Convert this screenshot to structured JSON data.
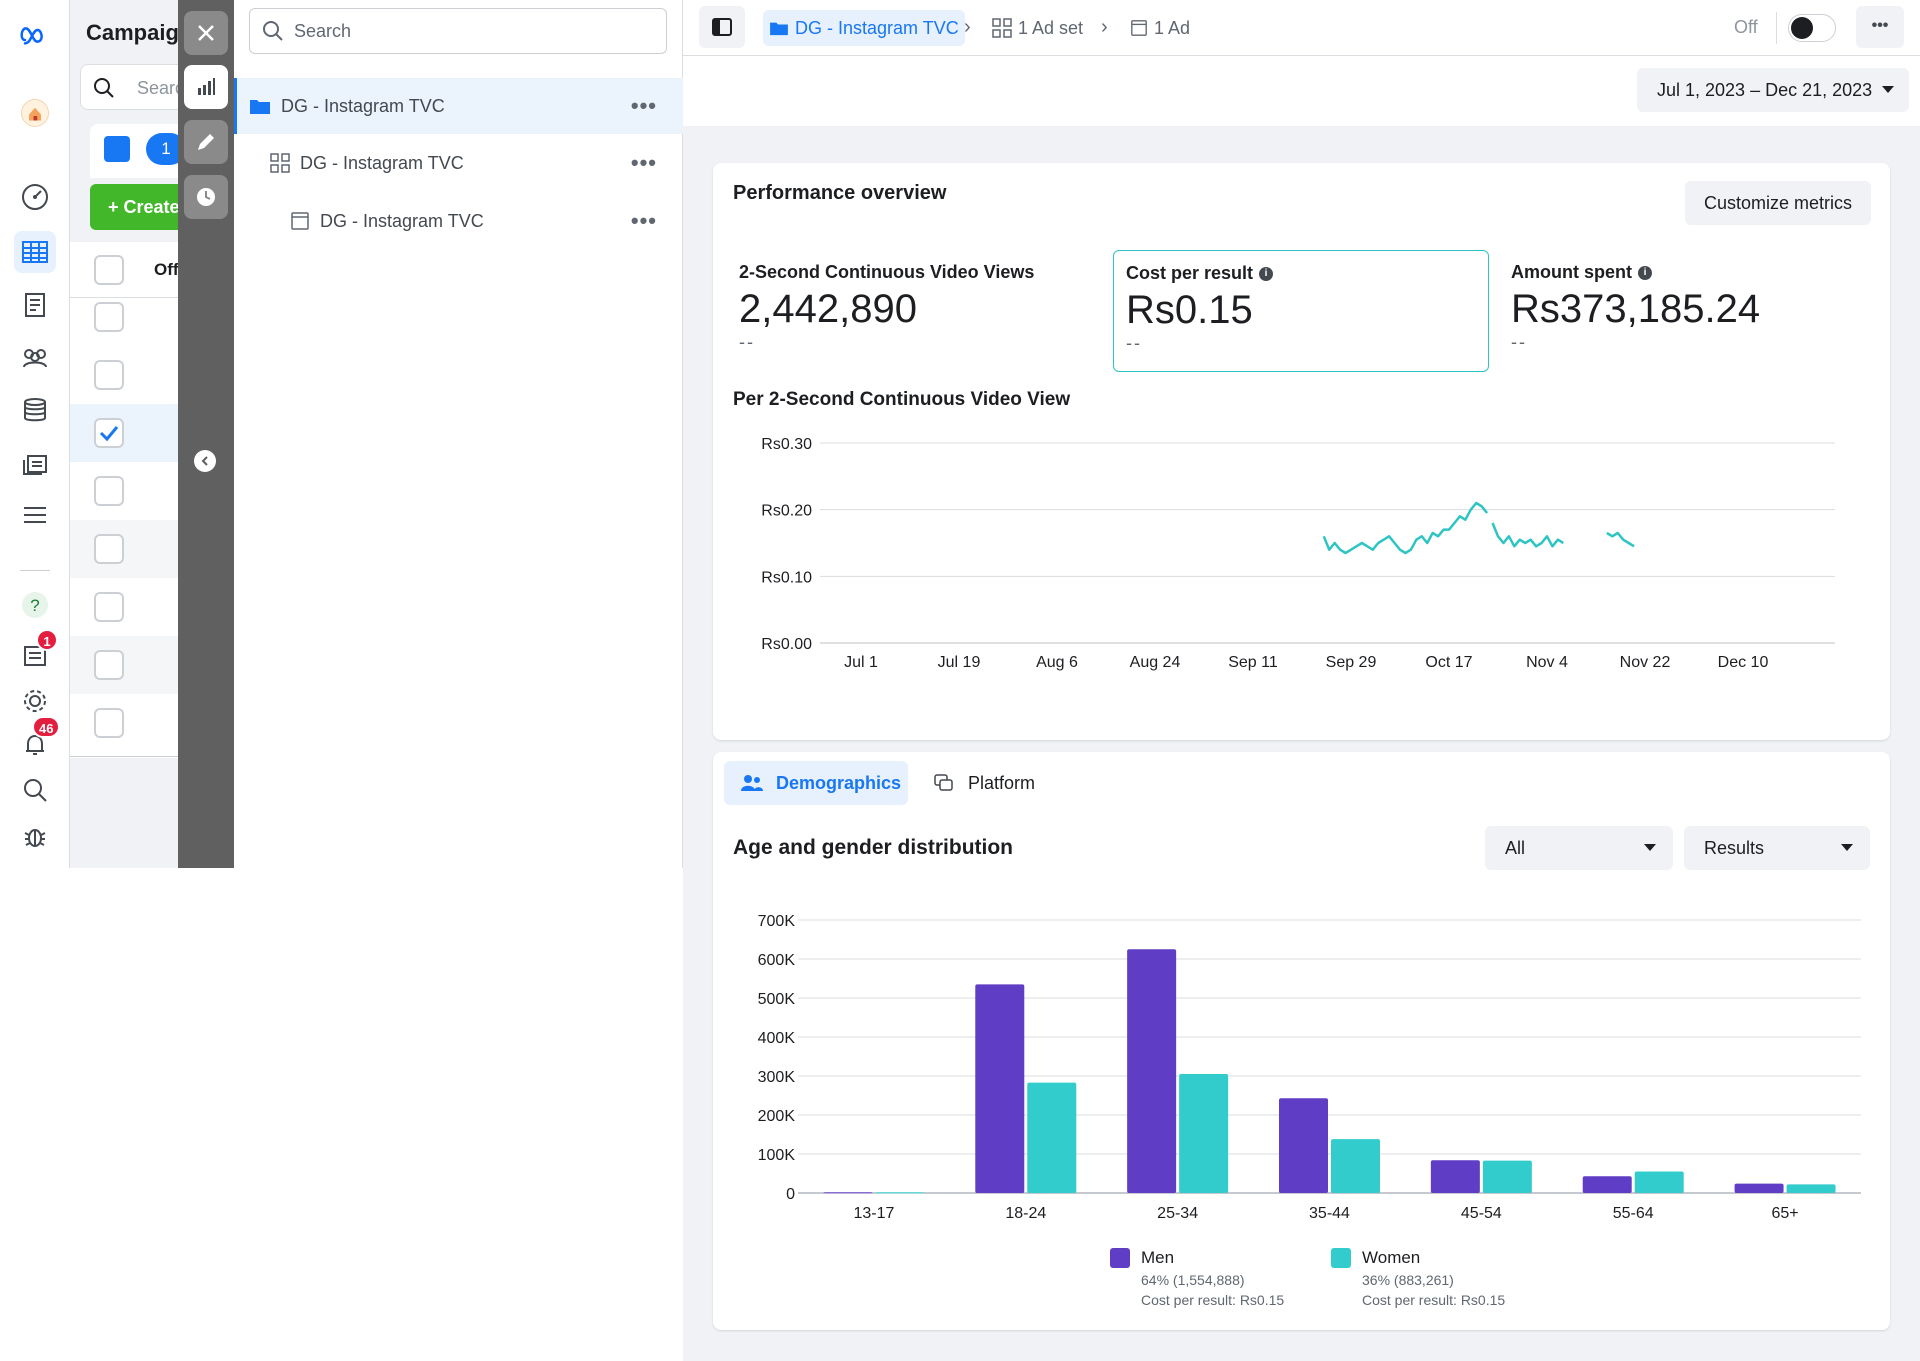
{
  "rail": {
    "badges": {
      "news": "1",
      "notifications": "46"
    }
  },
  "campaign_panel": {
    "title": "Campaign",
    "search_placeholder": "Search",
    "selected_count": "1",
    "create_label": "Create",
    "column_header": "Off"
  },
  "tree": {
    "search_placeholder": "Search",
    "items": [
      {
        "label": "DG - Instagram TVC",
        "level": "campaign"
      },
      {
        "label": "DG - Instagram TVC",
        "level": "adset"
      },
      {
        "label": "DG - Instagram TVC",
        "level": "ad"
      }
    ],
    "more": "•••"
  },
  "topbar": {
    "breadcrumb": {
      "campaign": "DG - Instagram TVC",
      "adset": "1 Ad set",
      "ad": "1 Ad"
    },
    "toggle_label": "Off",
    "more": "•••"
  },
  "date_range": "Jul 1, 2023 – Dec 21, 2023",
  "overview": {
    "title": "Performance overview",
    "customize_label": "Customize metrics",
    "metrics": [
      {
        "label": "2-Second Continuous Video Views",
        "value": "2,442,890",
        "compare": "--",
        "selected": false,
        "info": false
      },
      {
        "label": "Cost per result",
        "value": "Rs0.15",
        "compare": "--",
        "selected": true,
        "info": true
      },
      {
        "label": "Amount spent",
        "value": "Rs373,185.24",
        "compare": "--",
        "selected": false,
        "info": true
      }
    ],
    "line_chart_title": "Per 2-Second Continuous Video View"
  },
  "tabs": {
    "demographics": "Demographics",
    "platform": "Platform"
  },
  "age_gender": {
    "title": "Age and gender distribution",
    "filter_all": "All",
    "filter_results": "Results"
  },
  "legend": {
    "men": {
      "name": "Men",
      "share": "64% (1,554,888)",
      "cpr": "Cost per result: Rs0.15"
    },
    "women": {
      "name": "Women",
      "share": "36% (883,261)",
      "cpr": "Cost per result: Rs0.15"
    }
  },
  "colors": {
    "accent": "#1877f2",
    "men": "#5f3dc4",
    "women": "#33cccc",
    "line": "#2ec4c4"
  },
  "chart_data": [
    {
      "type": "line",
      "ylabel": "",
      "yticks": [
        "Rs0.00",
        "Rs0.10",
        "Rs0.20",
        "Rs0.30"
      ],
      "ylim": [
        0,
        0.3
      ],
      "xticks": [
        "Jul 1",
        "Jul 19",
        "Aug 6",
        "Aug 24",
        "Sep 11",
        "Sep 29",
        "Oct 17",
        "Nov 4",
        "Nov 22",
        "Dec 10"
      ],
      "x_start": "2023-07-01",
      "series": [
        {
          "values_by_day": [
            [
              85,
              0.16
            ],
            [
              86,
              0.14
            ],
            [
              87,
              0.15
            ],
            [
              88,
              0.14
            ],
            [
              89,
              0.135
            ],
            [
              90,
              0.14
            ],
            [
              91,
              0.145
            ],
            [
              92,
              0.15
            ],
            [
              93,
              0.145
            ],
            [
              94,
              0.14
            ],
            [
              95,
              0.15
            ],
            [
              96,
              0.155
            ],
            [
              97,
              0.16
            ],
            [
              98,
              0.15
            ],
            [
              99,
              0.14
            ],
            [
              100,
              0.135
            ],
            [
              101,
              0.14
            ],
            [
              102,
              0.155
            ],
            [
              103,
              0.16
            ],
            [
              104,
              0.15
            ],
            [
              105,
              0.165
            ],
            [
              106,
              0.16
            ],
            [
              107,
              0.17
            ],
            [
              108,
              0.17
            ],
            [
              109,
              0.18
            ],
            [
              110,
              0.19
            ],
            [
              111,
              0.185
            ],
            [
              112,
              0.2
            ],
            [
              113,
              0.21
            ],
            [
              114,
              0.205
            ],
            [
              115,
              0.195
            ]
          ]
        },
        {
          "values_by_day": [
            [
              116,
              0.18
            ],
            [
              117,
              0.16
            ],
            [
              118,
              0.15
            ],
            [
              119,
              0.16
            ],
            [
              120,
              0.145
            ],
            [
              121,
              0.155
            ],
            [
              122,
              0.15
            ],
            [
              123,
              0.155
            ],
            [
              124,
              0.145
            ],
            [
              125,
              0.15
            ],
            [
              126,
              0.16
            ],
            [
              127,
              0.145
            ],
            [
              128,
              0.155
            ],
            [
              129,
              0.15
            ]
          ]
        },
        {
          "values_by_day": [
            [
              137,
              0.165
            ],
            [
              138,
              0.16
            ],
            [
              139,
              0.165
            ],
            [
              140,
              0.155
            ],
            [
              141,
              0.15
            ],
            [
              142,
              0.145
            ]
          ]
        }
      ]
    },
    {
      "type": "bar",
      "categories": [
        "13-17",
        "18-24",
        "25-34",
        "35-44",
        "45-54",
        "55-64",
        "65+"
      ],
      "yticks": [
        "0",
        "100K",
        "200K",
        "300K",
        "400K",
        "500K",
        "600K",
        "700K"
      ],
      "ylim": [
        0,
        700000
      ],
      "series": [
        {
          "name": "Men",
          "values": [
            2000,
            535000,
            625000,
            243000,
            84000,
            43000,
            24000
          ]
        },
        {
          "name": "Women",
          "values": [
            2000,
            283000,
            305000,
            138000,
            83000,
            55000,
            22000
          ]
        }
      ]
    }
  ]
}
